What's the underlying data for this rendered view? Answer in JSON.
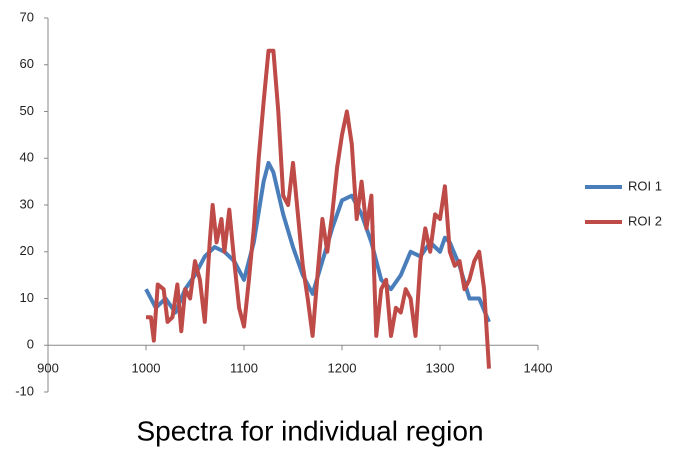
{
  "chart_data": {
    "type": "line",
    "title": "Spectra for individual region",
    "xlim": [
      900,
      1400
    ],
    "xticks": [
      900,
      1000,
      1100,
      1200,
      1300,
      1400
    ],
    "ylim": [
      -10,
      70
    ],
    "yticks": [
      -10,
      0,
      10,
      20,
      30,
      40,
      50,
      60,
      70
    ],
    "grid": false,
    "legend": "right",
    "series": [
      {
        "name": "ROI 1",
        "color": "#4a7ebb",
        "x": [
          1000,
          1010,
          1020,
          1030,
          1040,
          1050,
          1060,
          1070,
          1080,
          1090,
          1100,
          1110,
          1120,
          1125,
          1130,
          1140,
          1150,
          1160,
          1170,
          1180,
          1190,
          1200,
          1210,
          1220,
          1230,
          1240,
          1250,
          1260,
          1270,
          1280,
          1290,
          1300,
          1305,
          1310,
          1320,
          1330,
          1340,
          1350
        ],
        "values": [
          12,
          8,
          10,
          7,
          12,
          15,
          19,
          21,
          20,
          18,
          14,
          22,
          35,
          39,
          37,
          28,
          21,
          15,
          11,
          18,
          25,
          31,
          32,
          28,
          22,
          14,
          12,
          15,
          20,
          19,
          22,
          20,
          23,
          22,
          17,
          10,
          10,
          5
        ]
      },
      {
        "name": "ROI 2",
        "color": "#be4b48",
        "x": [
          1000,
          1005,
          1008,
          1012,
          1018,
          1022,
          1027,
          1032,
          1036,
          1040,
          1045,
          1050,
          1055,
          1060,
          1065,
          1068,
          1072,
          1077,
          1080,
          1085,
          1090,
          1095,
          1100,
          1105,
          1110,
          1115,
          1120,
          1125,
          1130,
          1135,
          1140,
          1145,
          1150,
          1155,
          1160,
          1165,
          1170,
          1175,
          1180,
          1185,
          1190,
          1195,
          1200,
          1205,
          1210,
          1215,
          1220,
          1225,
          1230,
          1235,
          1240,
          1245,
          1250,
          1255,
          1260,
          1265,
          1270,
          1275,
          1280,
          1285,
          1290,
          1295,
          1300,
          1305,
          1310,
          1315,
          1320,
          1325,
          1330,
          1335,
          1340,
          1345,
          1350
        ],
        "values": [
          6,
          6,
          1,
          13,
          12,
          5,
          6,
          13,
          3,
          12,
          10,
          18,
          14,
          5,
          22,
          30,
          22,
          27,
          20,
          29,
          18,
          8,
          4,
          14,
          25,
          40,
          52,
          63,
          63,
          50,
          32,
          30,
          39,
          28,
          17,
          10,
          2,
          15,
          27,
          20,
          28,
          38,
          45,
          50,
          43,
          27,
          35,
          25,
          32,
          2,
          12,
          14,
          2,
          8,
          7,
          12,
          10,
          2,
          18,
          25,
          20,
          28,
          27,
          34,
          20,
          17,
          18,
          12,
          14,
          18,
          20,
          12,
          -5
        ]
      }
    ]
  }
}
